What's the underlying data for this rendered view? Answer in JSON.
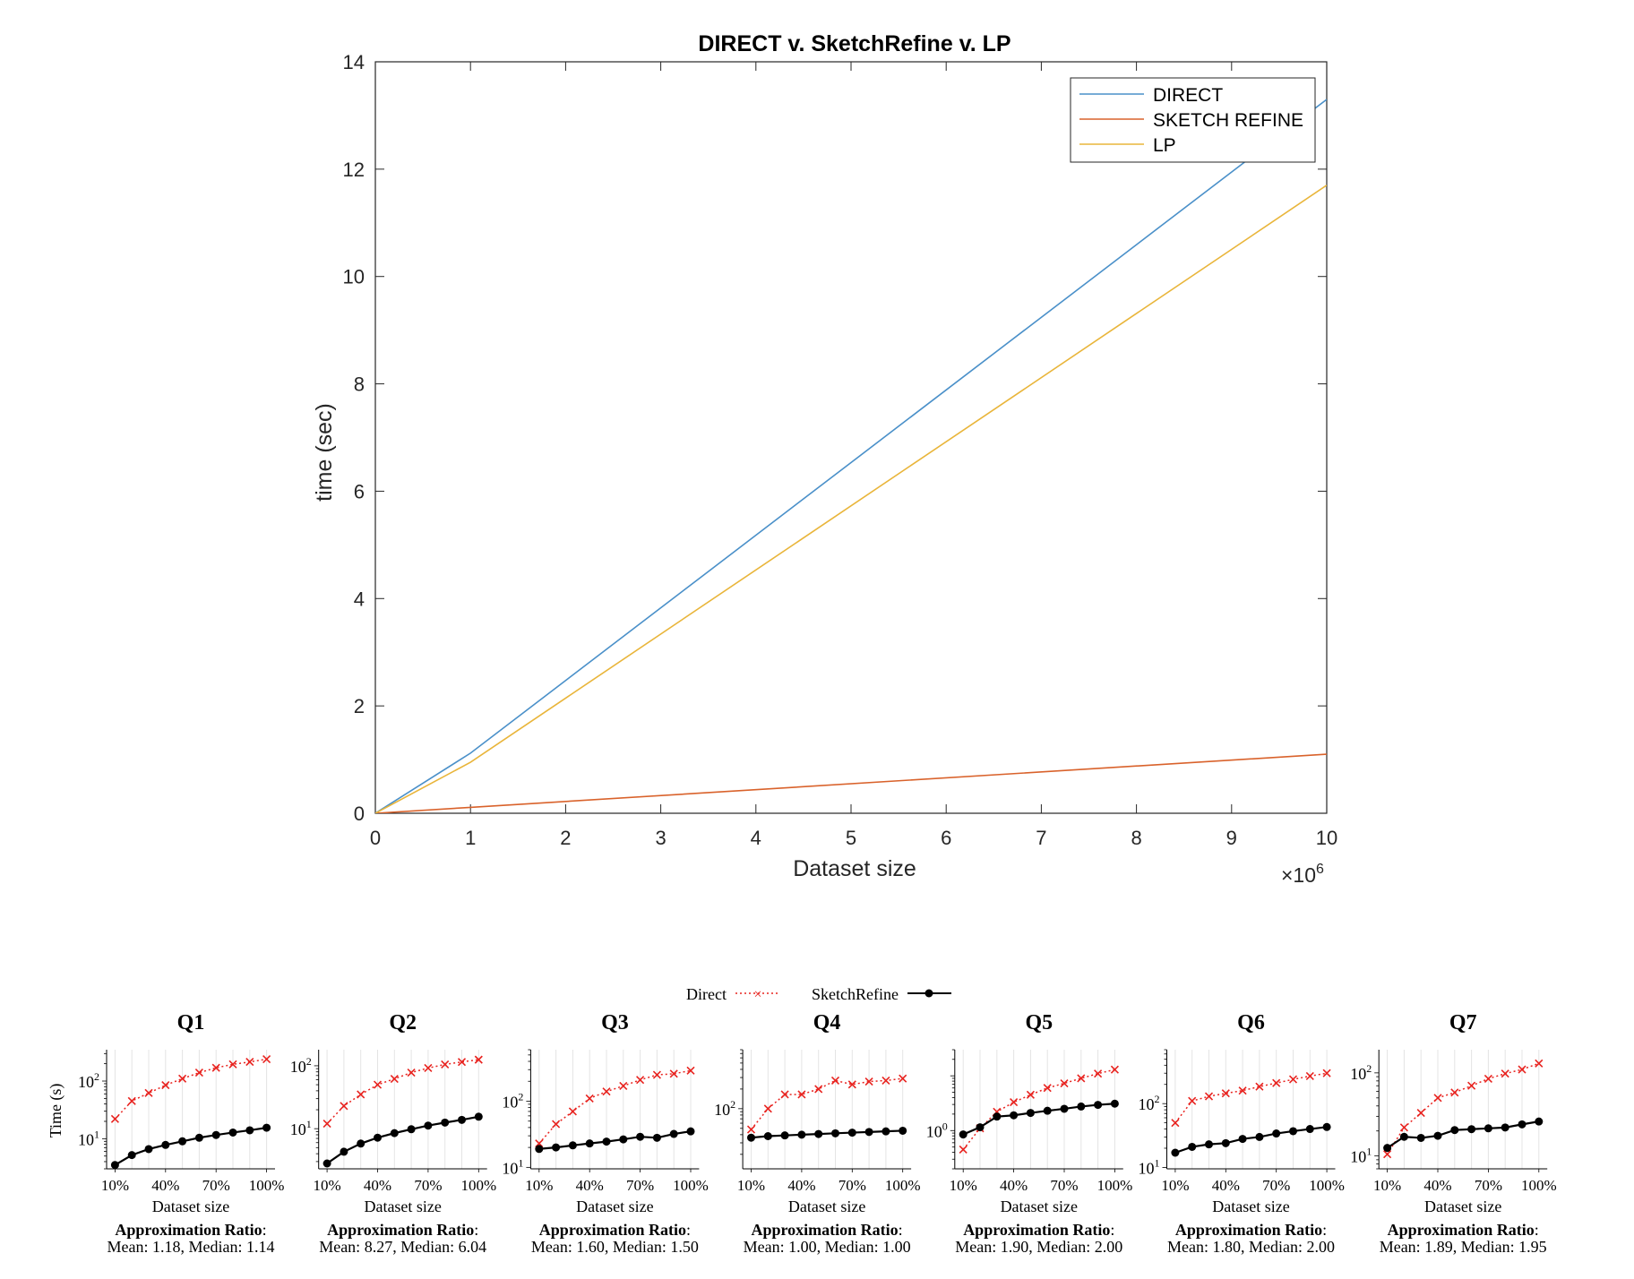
{
  "main_chart": {
    "chart_data": {
      "type": "line",
      "title": "DIRECT v. SketchRefine v. LP",
      "xlabel": "Dataset size",
      "ylabel": "time (sec)",
      "x_multiplier": "×10^6",
      "xlim": [
        0,
        10
      ],
      "ylim": [
        0,
        14
      ],
      "x_ticks": [
        0,
        1,
        2,
        3,
        4,
        5,
        6,
        7,
        8,
        9,
        10
      ],
      "y_ticks": [
        0,
        2,
        4,
        6,
        8,
        10,
        12,
        14
      ],
      "legend_position": "top-right",
      "grid": false,
      "x": [
        0,
        1,
        10
      ],
      "series": [
        {
          "name": "DIRECT",
          "color": "#4a90c9",
          "values": [
            0,
            1.12,
            13.3
          ]
        },
        {
          "name": "SKETCH REFINE",
          "color": "#d9622b",
          "values": [
            0,
            0.11,
            1.1
          ]
        },
        {
          "name": "LP",
          "color": "#e9b53a",
          "values": [
            0,
            0.95,
            11.7
          ]
        }
      ]
    }
  },
  "small_charts": {
    "legend": {
      "direct": "Direct",
      "sketchrefine": "SketchRefine"
    },
    "xlabel": "Dataset size",
    "ylabel": "Time (s)",
    "x_tick_labels": [
      "10%",
      "40%",
      "70%",
      "100%"
    ],
    "ratio_label": "Approximation Ratio",
    "colors": {
      "direct": "#e8231f",
      "sketchrefine": "#000000"
    },
    "chart_data": [
      {
        "type": "line",
        "title": "Q1",
        "y_scale": "log",
        "x": [
          10,
          20,
          30,
          40,
          50,
          60,
          70,
          80,
          90,
          100
        ],
        "ylim": [
          3,
          350
        ],
        "y_ticks": [
          10,
          100
        ],
        "series": [
          {
            "name": "Direct",
            "values": [
              22,
              45,
              62,
              85,
              110,
              140,
              170,
              195,
              215,
              240
            ]
          },
          {
            "name": "SketchRefine",
            "values": [
              3.5,
              5.2,
              6.6,
              7.8,
              9.0,
              10.4,
              11.6,
              12.8,
              14.0,
              15.5
            ]
          }
        ],
        "mean": "Mean: 1.18, Median: 1.14"
      },
      {
        "type": "line",
        "title": "Q2",
        "y_scale": "log",
        "x": [
          10,
          20,
          30,
          40,
          50,
          60,
          70,
          80,
          90,
          100
        ],
        "ylim": [
          2.3,
          180
        ],
        "y_ticks": [
          10,
          100
        ],
        "series": [
          {
            "name": "Direct",
            "values": [
              12,
              23,
              35,
              50,
              62,
              78,
              92,
              105,
              115,
              125
            ]
          },
          {
            "name": "SketchRefine",
            "values": [
              2.8,
              4.3,
              5.8,
              7.2,
              8.5,
              9.8,
              11.2,
              12.5,
              13.8,
              15.5
            ]
          }
        ],
        "mean": "Mean: 8.27, Median: 6.04"
      },
      {
        "type": "line",
        "title": "Q3",
        "y_scale": "log",
        "x": [
          10,
          20,
          30,
          40,
          50,
          60,
          70,
          80,
          90,
          100
        ],
        "ylim": [
          9.5,
          600
        ],
        "y_ticks": [
          10,
          100
        ],
        "series": [
          {
            "name": "Direct",
            "values": [
              23,
              45,
              70,
              110,
              140,
              170,
              210,
              250,
              260,
              290
            ]
          },
          {
            "name": "SketchRefine",
            "values": [
              19,
              20,
              21.5,
              23,
              24.5,
              26.5,
              29,
              28,
              32,
              35
            ]
          }
        ],
        "mean": "Mean: 1.60, Median: 1.50"
      },
      {
        "type": "line",
        "title": "Q4",
        "y_scale": "log",
        "x": [
          10,
          20,
          30,
          40,
          50,
          60,
          70,
          80,
          90,
          100
        ],
        "ylim": [
          12,
          800
        ],
        "y_ticks": [
          100
        ],
        "series": [
          {
            "name": "Direct",
            "values": [
              48,
              100,
              165,
              165,
              200,
              270,
              235,
              260,
              270,
              290
            ]
          },
          {
            "name": "SketchRefine",
            "values": [
              36,
              38,
              39,
              40,
              41,
              42,
              43,
              44,
              45,
              46
            ]
          }
        ],
        "mean": "Mean: 1.00, Median: 1.00"
      },
      {
        "type": "line",
        "title": "Q5",
        "y_scale": "log",
        "x": [
          10,
          20,
          30,
          40,
          50,
          60,
          70,
          80,
          90,
          100
        ],
        "ylim": [
          0.2,
          30
        ],
        "y_ticks": [
          1
        ],
        "series": [
          {
            "name": "Direct",
            "values": [
              0.45,
              1.1,
              2.2,
              3.3,
              4.5,
              6.0,
              7.3,
              9.0,
              11.0,
              13.0
            ]
          },
          {
            "name": "SketchRefine",
            "values": [
              0.85,
              1.15,
              1.8,
              1.9,
              2.1,
              2.3,
              2.5,
              2.75,
              2.95,
              3.1
            ]
          }
        ],
        "mean": "Mean: 1.90, Median: 2.00"
      },
      {
        "type": "line",
        "title": "Q6",
        "y_scale": "log",
        "x": [
          10,
          20,
          30,
          40,
          50,
          60,
          70,
          80,
          90,
          100
        ],
        "ylim": [
          9.5,
          700
        ],
        "y_ticks": [
          10,
          100
        ],
        "series": [
          {
            "name": "Direct",
            "values": [
              50,
              110,
              130,
              145,
              160,
              185,
              210,
              240,
              270,
              300
            ]
          },
          {
            "name": "SketchRefine",
            "values": [
              17,
              21,
              23,
              24,
              28,
              30,
              34,
              37,
              40,
              43
            ]
          }
        ],
        "mean": "Mean: 1.80, Median: 2.00"
      },
      {
        "type": "line",
        "title": "Q7",
        "y_scale": "log",
        "x": [
          10,
          20,
          30,
          40,
          50,
          60,
          70,
          80,
          90,
          100
        ],
        "ylim": [
          7,
          190
        ],
        "y_ticks": [
          10,
          100
        ],
        "series": [
          {
            "name": "Direct",
            "values": [
              10.5,
              22,
              33,
              50,
              58,
              70,
              85,
              98,
              110,
              130
            ]
          },
          {
            "name": "SketchRefine",
            "values": [
              12.5,
              17,
              16.5,
              17.5,
              20.5,
              21,
              21.5,
              22,
              24,
              26
            ]
          }
        ],
        "mean": "Mean: 1.89, Median: 1.95"
      }
    ]
  }
}
